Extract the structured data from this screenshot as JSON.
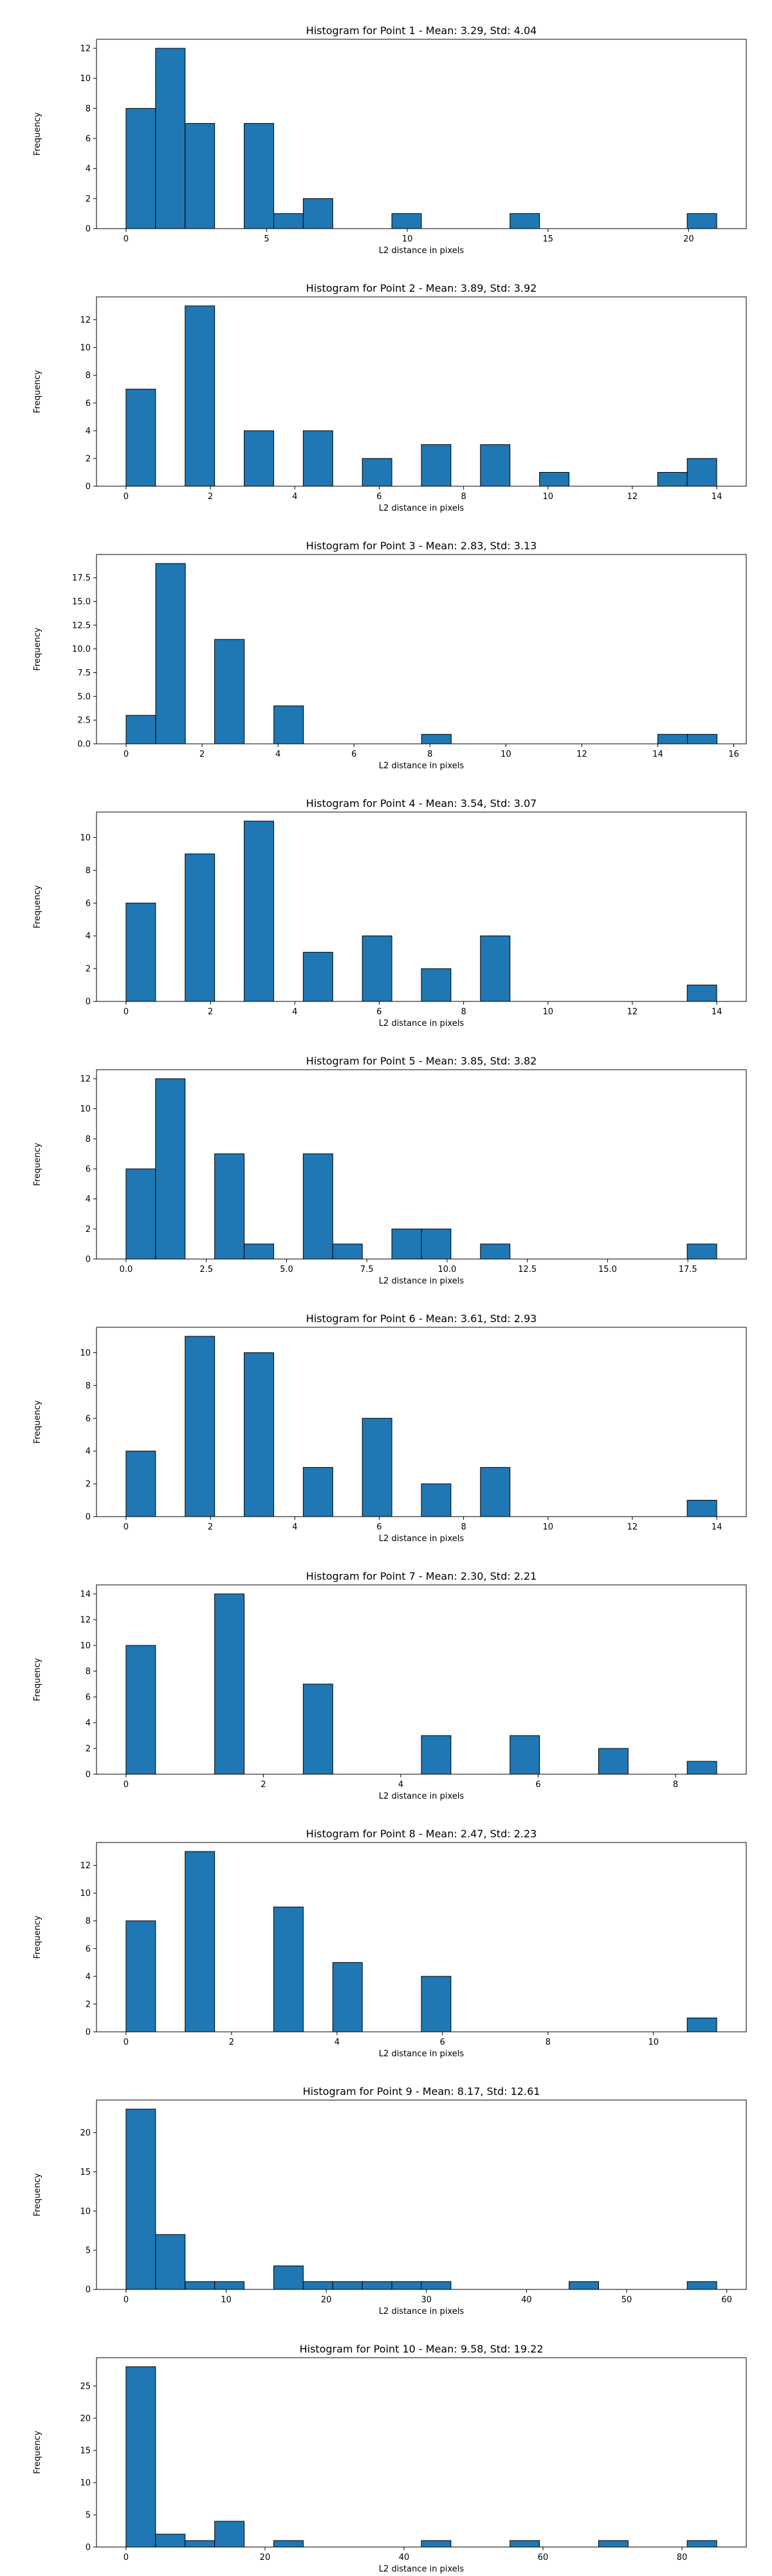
{
  "chart_data": [
    {
      "type": "bar",
      "title": "Histogram for Point 1 - Mean: 3.29, Std: 4.04",
      "xlabel": "L2 distance in pixels",
      "ylabel": "Frequency",
      "xlim": [
        -1.05,
        22.05
      ],
      "ylim": [
        0,
        12.6
      ],
      "xticks": [
        0,
        5,
        10,
        15,
        20
      ],
      "yticks": [
        0,
        2,
        4,
        6,
        8,
        10,
        12
      ],
      "bins": [
        {
          "x0": 0,
          "x1": 1.05,
          "count": 8
        },
        {
          "x0": 1.05,
          "x1": 2.1,
          "count": 12
        },
        {
          "x0": 2.1,
          "x1": 3.15,
          "count": 7
        },
        {
          "x0": 4.2,
          "x1": 5.25,
          "count": 7
        },
        {
          "x0": 5.25,
          "x1": 6.3,
          "count": 1
        },
        {
          "x0": 6.3,
          "x1": 7.35,
          "count": 2
        },
        {
          "x0": 9.45,
          "x1": 10.5,
          "count": 1
        },
        {
          "x0": 13.65,
          "x1": 14.7,
          "count": 1
        },
        {
          "x0": 19.95,
          "x1": 21.0,
          "count": 1
        }
      ]
    },
    {
      "type": "bar",
      "title": "Histogram for Point 2 - Mean: 3.89, Std: 3.92",
      "xlabel": "L2 distance in pixels",
      "ylabel": "Frequency",
      "xlim": [
        -0.7,
        14.7
      ],
      "ylim": [
        0,
        13.65
      ],
      "xticks": [
        0,
        2,
        4,
        6,
        8,
        10,
        12,
        14
      ],
      "yticks": [
        0,
        2,
        4,
        6,
        8,
        10,
        12
      ],
      "bins": [
        {
          "x0": 0,
          "x1": 0.7,
          "count": 7
        },
        {
          "x0": 1.4,
          "x1": 2.1,
          "count": 13
        },
        {
          "x0": 2.8,
          "x1": 3.5,
          "count": 4
        },
        {
          "x0": 4.2,
          "x1": 4.9,
          "count": 4
        },
        {
          "x0": 5.6,
          "x1": 6.3,
          "count": 2
        },
        {
          "x0": 7.0,
          "x1": 7.7,
          "count": 3
        },
        {
          "x0": 8.4,
          "x1": 9.1,
          "count": 3
        },
        {
          "x0": 9.8,
          "x1": 10.5,
          "count": 1
        },
        {
          "x0": 12.6,
          "x1": 13.3,
          "count": 1
        },
        {
          "x0": 13.3,
          "x1": 14.0,
          "count": 2
        }
      ]
    },
    {
      "type": "bar",
      "title": "Histogram for Point 3 - Mean: 2.83, Std: 3.13",
      "xlabel": "L2 distance in pixels",
      "ylabel": "Frequency",
      "xlim": [
        -0.78,
        16.33
      ],
      "ylim": [
        0,
        19.95
      ],
      "xticks": [
        0,
        2,
        4,
        6,
        8,
        10,
        12,
        14,
        16
      ],
      "yticks": [
        0.0,
        2.5,
        5.0,
        7.5,
        10.0,
        12.5,
        15.0,
        17.5
      ],
      "bins": [
        {
          "x0": 0,
          "x1": 0.78,
          "count": 3
        },
        {
          "x0": 0.78,
          "x1": 1.56,
          "count": 19
        },
        {
          "x0": 2.33,
          "x1": 3.11,
          "count": 11
        },
        {
          "x0": 3.89,
          "x1": 4.67,
          "count": 4
        },
        {
          "x0": 7.78,
          "x1": 8.56,
          "count": 1
        },
        {
          "x0": 14.0,
          "x1": 14.78,
          "count": 1
        },
        {
          "x0": 14.78,
          "x1": 15.56,
          "count": 1
        }
      ]
    },
    {
      "type": "bar",
      "title": "Histogram for Point 4 - Mean: 3.54, Std: 3.07",
      "xlabel": "L2 distance in pixels",
      "ylabel": "Frequency",
      "xlim": [
        -0.7,
        14.7
      ],
      "ylim": [
        0,
        11.55
      ],
      "xticks": [
        0,
        2,
        4,
        6,
        8,
        10,
        12,
        14
      ],
      "yticks": [
        0,
        2,
        4,
        6,
        8,
        10
      ],
      "bins": [
        {
          "x0": 0,
          "x1": 0.7,
          "count": 6
        },
        {
          "x0": 1.4,
          "x1": 2.1,
          "count": 9
        },
        {
          "x0": 2.8,
          "x1": 3.5,
          "count": 11
        },
        {
          "x0": 4.2,
          "x1": 4.9,
          "count": 3
        },
        {
          "x0": 5.6,
          "x1": 6.3,
          "count": 4
        },
        {
          "x0": 7.0,
          "x1": 7.7,
          "count": 2
        },
        {
          "x0": 8.4,
          "x1": 9.1,
          "count": 4
        },
        {
          "x0": 13.3,
          "x1": 14.0,
          "count": 1
        }
      ]
    },
    {
      "type": "bar",
      "title": "Histogram for Point 5 - Mean: 3.85, Std: 3.82",
      "xlabel": "L2 distance in pixels",
      "ylabel": "Frequency",
      "xlim": [
        -0.92,
        19.32
      ],
      "ylim": [
        0,
        12.6
      ],
      "xticks": [
        0.0,
        2.5,
        5.0,
        7.5,
        10.0,
        12.5,
        15.0,
        17.5
      ],
      "yticks": [
        0,
        2,
        4,
        6,
        8,
        10,
        12
      ],
      "bins": [
        {
          "x0": 0,
          "x1": 0.92,
          "count": 6
        },
        {
          "x0": 0.92,
          "x1": 1.84,
          "count": 12
        },
        {
          "x0": 2.76,
          "x1": 3.68,
          "count": 7
        },
        {
          "x0": 3.68,
          "x1": 4.6,
          "count": 1
        },
        {
          "x0": 5.52,
          "x1": 6.44,
          "count": 7
        },
        {
          "x0": 6.44,
          "x1": 7.36,
          "count": 1
        },
        {
          "x0": 8.28,
          "x1": 9.2,
          "count": 2
        },
        {
          "x0": 9.2,
          "x1": 10.12,
          "count": 2
        },
        {
          "x0": 11.04,
          "x1": 11.96,
          "count": 1
        },
        {
          "x0": 17.48,
          "x1": 18.4,
          "count": 1
        }
      ]
    },
    {
      "type": "bar",
      "title": "Histogram for Point 6 - Mean: 3.61, Std: 2.93",
      "xlabel": "L2 distance in pixels",
      "ylabel": "Frequency",
      "xlim": [
        -0.7,
        14.7
      ],
      "ylim": [
        0,
        11.55
      ],
      "xticks": [
        0,
        2,
        4,
        6,
        8,
        10,
        12,
        14
      ],
      "yticks": [
        0,
        2,
        4,
        6,
        8,
        10
      ],
      "bins": [
        {
          "x0": 0,
          "x1": 0.7,
          "count": 4
        },
        {
          "x0": 1.4,
          "x1": 2.1,
          "count": 11
        },
        {
          "x0": 2.8,
          "x1": 3.5,
          "count": 10
        },
        {
          "x0": 4.2,
          "x1": 4.9,
          "count": 3
        },
        {
          "x0": 5.6,
          "x1": 6.3,
          "count": 6
        },
        {
          "x0": 7.0,
          "x1": 7.7,
          "count": 2
        },
        {
          "x0": 8.4,
          "x1": 9.1,
          "count": 3
        },
        {
          "x0": 13.3,
          "x1": 14.0,
          "count": 1
        }
      ]
    },
    {
      "type": "bar",
      "title": "Histogram for Point 7 - Mean: 2.30, Std: 2.21",
      "xlabel": "L2 distance in pixels",
      "ylabel": "Frequency",
      "xlim": [
        -0.43,
        9.03
      ],
      "ylim": [
        0,
        14.7
      ],
      "xticks": [
        0,
        2,
        4,
        6,
        8
      ],
      "yticks": [
        0,
        2,
        4,
        6,
        8,
        10,
        12,
        14
      ],
      "bins": [
        {
          "x0": 0,
          "x1": 0.43,
          "count": 10
        },
        {
          "x0": 1.29,
          "x1": 1.72,
          "count": 14
        },
        {
          "x0": 2.58,
          "x1": 3.01,
          "count": 7
        },
        {
          "x0": 4.3,
          "x1": 4.73,
          "count": 3
        },
        {
          "x0": 5.59,
          "x1": 6.02,
          "count": 3
        },
        {
          "x0": 6.88,
          "x1": 7.31,
          "count": 2
        },
        {
          "x0": 8.17,
          "x1": 8.6,
          "count": 1
        }
      ]
    },
    {
      "type": "bar",
      "title": "Histogram for Point 8 - Mean: 2.47, Std: 2.23",
      "xlabel": "L2 distance in pixels",
      "ylabel": "Frequency",
      "xlim": [
        -0.56,
        11.76
      ],
      "ylim": [
        0,
        13.65
      ],
      "xticks": [
        0,
        2,
        4,
        6,
        8,
        10
      ],
      "yticks": [
        0,
        2,
        4,
        6,
        8,
        10,
        12
      ],
      "bins": [
        {
          "x0": 0,
          "x1": 0.56,
          "count": 8
        },
        {
          "x0": 1.12,
          "x1": 1.68,
          "count": 13
        },
        {
          "x0": 2.8,
          "x1": 3.36,
          "count": 9
        },
        {
          "x0": 3.92,
          "x1": 4.48,
          "count": 5
        },
        {
          "x0": 5.6,
          "x1": 6.16,
          "count": 4
        },
        {
          "x0": 10.64,
          "x1": 11.2,
          "count": 1
        }
      ]
    },
    {
      "type": "bar",
      "title": "Histogram for Point 9 - Mean: 8.17, Std: 12.61",
      "xlabel": "L2 distance in pixels",
      "ylabel": "Frequency",
      "xlim": [
        -2.95,
        61.95
      ],
      "ylim": [
        0,
        24.15
      ],
      "xticks": [
        0,
        10,
        20,
        30,
        40,
        50,
        60
      ],
      "yticks": [
        0,
        5,
        10,
        15,
        20
      ],
      "bins": [
        {
          "x0": 0,
          "x1": 2.95,
          "count": 23
        },
        {
          "x0": 2.95,
          "x1": 5.9,
          "count": 7
        },
        {
          "x0": 5.9,
          "x1": 8.85,
          "count": 1
        },
        {
          "x0": 8.85,
          "x1": 11.8,
          "count": 1
        },
        {
          "x0": 14.75,
          "x1": 17.7,
          "count": 3
        },
        {
          "x0": 17.7,
          "x1": 20.65,
          "count": 1
        },
        {
          "x0": 20.65,
          "x1": 23.6,
          "count": 1
        },
        {
          "x0": 23.6,
          "x1": 26.55,
          "count": 1
        },
        {
          "x0": 26.55,
          "x1": 29.5,
          "count": 1
        },
        {
          "x0": 29.5,
          "x1": 32.45,
          "count": 1
        },
        {
          "x0": 44.25,
          "x1": 47.2,
          "count": 1
        },
        {
          "x0": 56.05,
          "x1": 59.0,
          "count": 1
        }
      ]
    },
    {
      "type": "bar",
      "title": "Histogram for Point 10 - Mean: 9.58, Std: 19.22",
      "xlabel": "L2 distance in pixels",
      "ylabel": "Frequency",
      "xlim": [
        -4.25,
        89.25
      ],
      "ylim": [
        0,
        29.4
      ],
      "xticks": [
        0,
        20,
        40,
        60,
        80
      ],
      "yticks": [
        0,
        5,
        10,
        15,
        20,
        25
      ],
      "bins": [
        {
          "x0": 0,
          "x1": 4.25,
          "count": 28
        },
        {
          "x0": 4.25,
          "x1": 8.5,
          "count": 2
        },
        {
          "x0": 8.5,
          "x1": 12.75,
          "count": 1
        },
        {
          "x0": 12.75,
          "x1": 17.0,
          "count": 4
        },
        {
          "x0": 21.25,
          "x1": 25.5,
          "count": 1
        },
        {
          "x0": 42.5,
          "x1": 46.75,
          "count": 1
        },
        {
          "x0": 55.25,
          "x1": 59.5,
          "count": 1
        },
        {
          "x0": 68.0,
          "x1": 72.25,
          "count": 1
        },
        {
          "x0": 80.75,
          "x1": 85.0,
          "count": 1
        }
      ]
    }
  ]
}
